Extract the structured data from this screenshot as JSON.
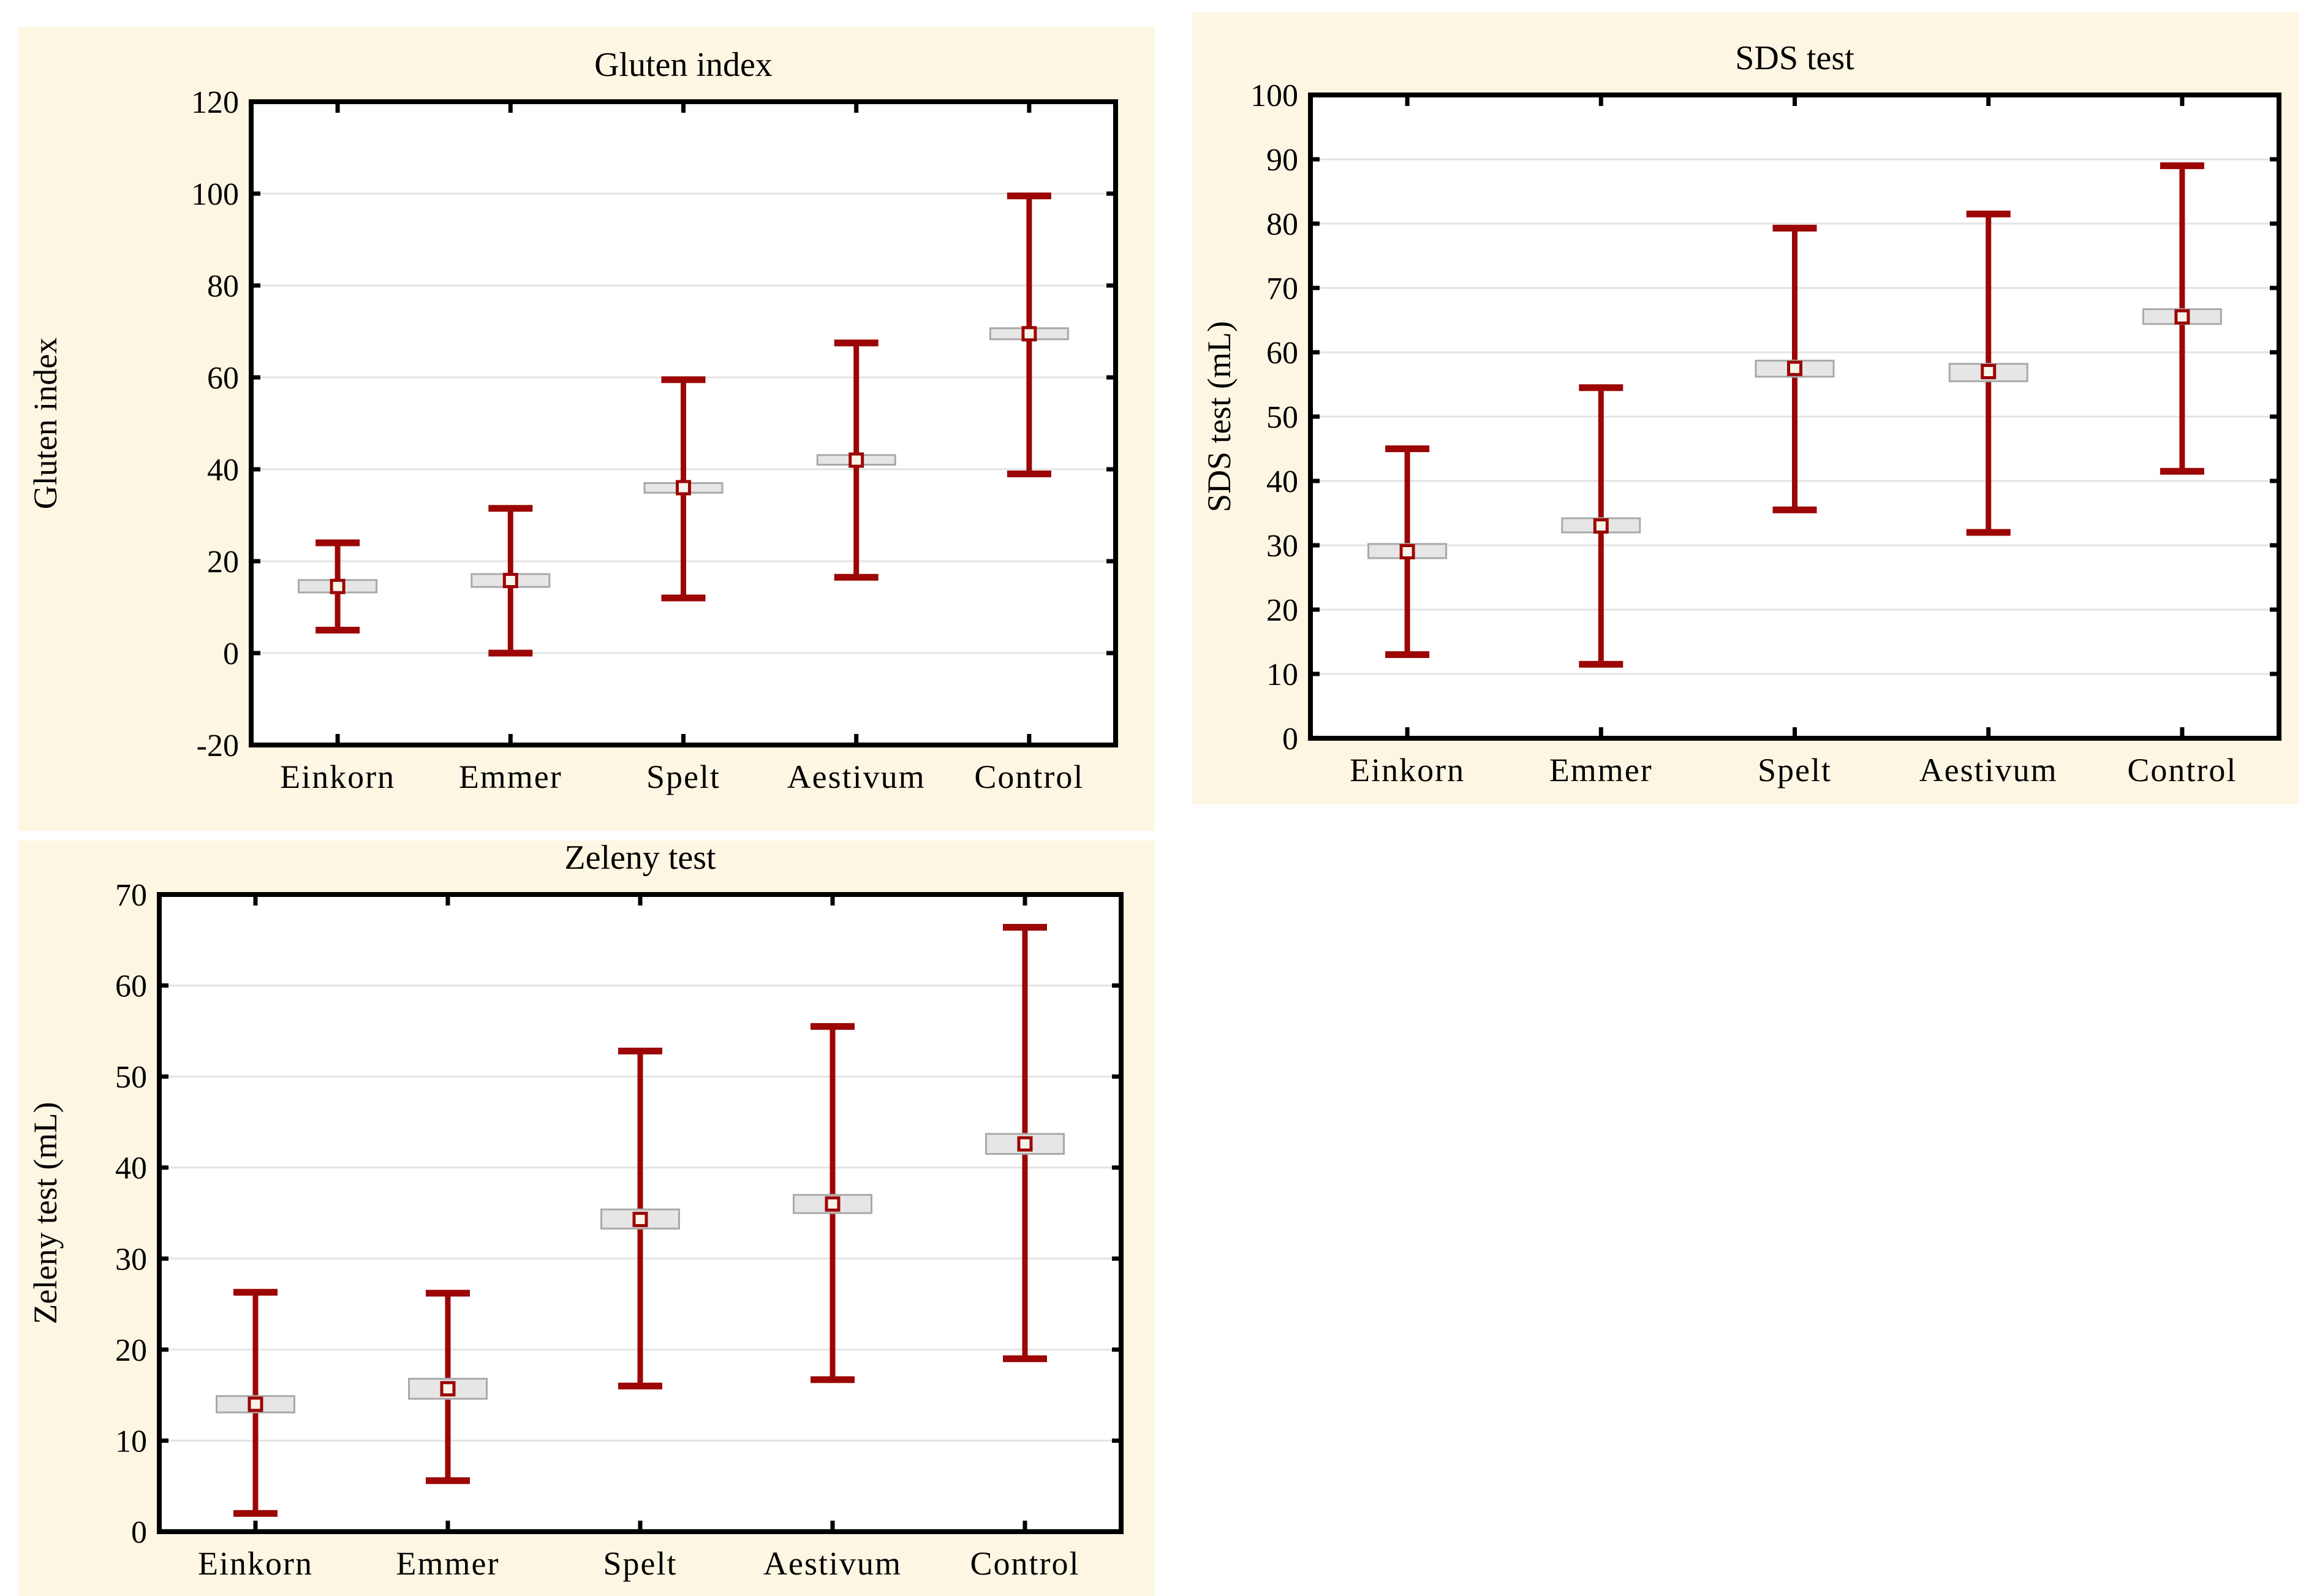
{
  "page": {
    "background": "#ffffff",
    "panel_background": "#FDF6E3"
  },
  "colors": {
    "whisker_red": "#9C0606",
    "box_fill": "#E6E6E6",
    "box_border": "#A9A9A9",
    "mean_fill": "#F7F4EA",
    "gridline": "#E3E3E3",
    "frame": "#000000",
    "plot_background": "#FFFFFF",
    "text": "#000000"
  },
  "chart_data": [
    {
      "type": "box",
      "style": "mean-box-whisker",
      "title": "Gluten index",
      "ylabel": "Gluten index",
      "xlabel": "",
      "categories": [
        "Einkorn",
        "Emmer",
        "Spelt",
        "Aestivum",
        "Control"
      ],
      "ylim": [
        -20,
        120
      ],
      "ytick_step": 20,
      "ytick_labels": [
        "-20",
        "0",
        "20",
        "40",
        "60",
        "80",
        "100",
        "120"
      ],
      "grid": "horizontal",
      "legend": "none",
      "series": [
        {
          "name": "mean",
          "values": [
            14.5,
            15.8,
            36.0,
            42.0,
            69.5
          ]
        },
        {
          "name": "box_low",
          "values": [
            13.2,
            14.4,
            34.9,
            41.0,
            68.3
          ]
        },
        {
          "name": "box_high",
          "values": [
            15.9,
            17.2,
            37.0,
            43.1,
            70.7
          ]
        },
        {
          "name": "whisker_low",
          "values": [
            5.0,
            0.0,
            12.0,
            16.5,
            39.0
          ]
        },
        {
          "name": "whisker_high",
          "values": [
            24.0,
            31.5,
            59.5,
            67.5,
            99.5
          ]
        }
      ]
    },
    {
      "type": "box",
      "style": "mean-box-whisker",
      "title": "SDS test",
      "ylabel": "SDS test (mL)",
      "xlabel": "",
      "categories": [
        "Einkorn",
        "Emmer",
        "Spelt",
        "Aestivum",
        "Control"
      ],
      "ylim": [
        0,
        100
      ],
      "ytick_step": 10,
      "ytick_labels": [
        "0",
        "10",
        "20",
        "30",
        "40",
        "50",
        "60",
        "70",
        "80",
        "90",
        "100"
      ],
      "grid": "horizontal",
      "legend": "none",
      "series": [
        {
          "name": "mean",
          "values": [
            29.0,
            33.0,
            57.5,
            57.0,
            65.5
          ]
        },
        {
          "name": "box_low",
          "values": [
            28.0,
            32.0,
            56.2,
            55.5,
            64.4
          ]
        },
        {
          "name": "box_high",
          "values": [
            30.2,
            34.2,
            58.7,
            58.2,
            66.7
          ]
        },
        {
          "name": "whisker_low",
          "values": [
            13.0,
            11.5,
            35.5,
            32.0,
            41.5
          ]
        },
        {
          "name": "whisker_high",
          "values": [
            45.0,
            54.5,
            79.3,
            81.5,
            89.0
          ]
        }
      ]
    },
    {
      "type": "box",
      "style": "mean-box-whisker",
      "title": "Zeleny test",
      "ylabel": "Zeleny test (mL)",
      "xlabel": "",
      "categories": [
        "Einkorn",
        "Emmer",
        "Spelt",
        "Aestivum",
        "Control"
      ],
      "ylim": [
        0,
        70
      ],
      "ytick_step": 10,
      "ytick_labels": [
        "0",
        "10",
        "20",
        "30",
        "40",
        "50",
        "60",
        "70"
      ],
      "grid": "horizontal",
      "legend": "none",
      "series": [
        {
          "name": "mean",
          "values": [
            14.0,
            15.7,
            34.3,
            36.0,
            42.6
          ]
        },
        {
          "name": "box_low",
          "values": [
            13.1,
            14.6,
            33.3,
            35.0,
            41.5
          ]
        },
        {
          "name": "box_high",
          "values": [
            14.9,
            16.8,
            35.4,
            37.0,
            43.7
          ]
        },
        {
          "name": "whisker_low",
          "values": [
            2.0,
            5.6,
            16.0,
            16.7,
            19.0
          ]
        },
        {
          "name": "whisker_high",
          "values": [
            26.3,
            26.2,
            52.8,
            55.5,
            66.4
          ]
        }
      ]
    }
  ]
}
